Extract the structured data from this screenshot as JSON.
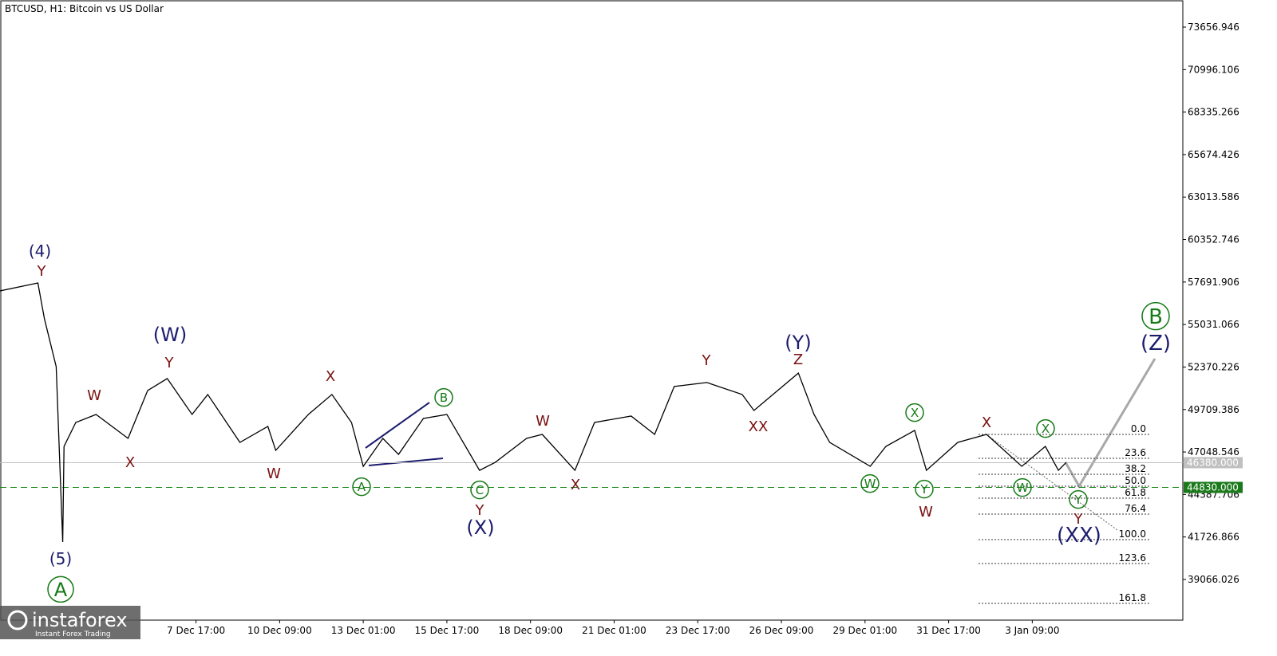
{
  "chart_data": {
    "type": "line",
    "title": "BTCUSD, H1:  Bitcoin vs US Dollar",
    "logo": "instaforex",
    "logo_tagline": "Instant Forex Trading",
    "x": [
      -150,
      -121,
      -116,
      -107,
      -102,
      -101,
      -92,
      -76.5,
      -52,
      -37,
      -22,
      -3,
      9,
      33.6,
      55,
      61,
      86,
      104,
      119,
      128,
      143,
      155,
      174,
      192,
      217,
      229,
      253,
      265,
      290,
      305,
      333,
      351,
      366,
      391,
      418,
      427,
      461,
      473,
      485,
      516,
      528,
      550,
      559,
      583,
      605,
      632,
      650,
      660,
      666
    ],
    "series": [
      {
        "color": "#000000",
        "values": [
          57137,
          57636,
          55390,
          52395,
          41412,
          47400,
          48900,
          49400,
          47900,
          50900,
          51650,
          49400,
          50650,
          47650,
          48650,
          47150,
          49400,
          50650,
          48900,
          46150,
          47900,
          46900,
          49150,
          49400,
          45900,
          46400,
          47900,
          48150,
          45900,
          48900,
          49300,
          48150,
          51150,
          51400,
          50650,
          49650,
          51990,
          49400,
          47650,
          46150,
          47400,
          48400,
          45900,
          47650,
          48150,
          46150,
          47400,
          45900,
          46400
        ]
      }
    ],
    "xlim": [
      -150,
      754
    ],
    "ylim": [
      36520,
      75354
    ],
    "xticks": [
      {
        "value": 0,
        "label": "7 Dec 17:00"
      },
      {
        "value": 64,
        "label": "10 Dec 09:00"
      },
      {
        "value": 128,
        "label": "13 Dec 01:00"
      },
      {
        "value": 192,
        "label": "15 Dec 17:00"
      },
      {
        "value": 256,
        "label": "18 Dec 09:00"
      },
      {
        "value": 320,
        "label": "21 Dec 01:00"
      },
      {
        "value": 384,
        "label": "23 Dec 17:00"
      },
      {
        "value": 448,
        "label": "26 Dec 09:00"
      },
      {
        "value": 512,
        "label": "29 Dec 01:00"
      },
      {
        "value": 576,
        "label": "31 Dec 17:00"
      },
      {
        "value": 640,
        "label": "3 Jan 09:00"
      }
    ],
    "yticks": [
      {
        "value": 73656.946,
        "label": "73656.946"
      },
      {
        "value": 70996.106,
        "label": "70996.106"
      },
      {
        "value": 68335.266,
        "label": "68335.266"
      },
      {
        "value": 65674.426,
        "label": "65674.426"
      },
      {
        "value": 63013.586,
        "label": "63013.586"
      },
      {
        "value": 60352.746,
        "label": "60352.746"
      },
      {
        "value": 57691.906,
        "label": "57691.906"
      },
      {
        "value": 55031.066,
        "label": "55031.066"
      },
      {
        "value": 52370.226,
        "label": "52370.226"
      },
      {
        "value": 49709.386,
        "label": "49709.386"
      },
      {
        "value": 47048.546,
        "label": "47048.546"
      },
      {
        "value": 44387.706,
        "label": "44387.706"
      },
      {
        "value": 41726.866,
        "label": "41726.866"
      },
      {
        "value": 39066.026,
        "label": "39066.026"
      }
    ],
    "current_price": {
      "value": 46380,
      "label": "46380.000"
    },
    "level": {
      "value": 44830,
      "label": "44830.000"
    },
    "fib_levels": [
      "0.0",
      "23.6",
      "38.2",
      "50.0",
      "61.8",
      "76.4",
      "100.0",
      "123.6",
      "161.8"
    ],
    "wave_labels": [
      "(4)",
      "Y",
      "(5)",
      "A",
      "(W)",
      "Y",
      "W",
      "X",
      "W",
      "X",
      "A",
      "B",
      "C",
      "Y",
      "(X)",
      "W",
      "X",
      "Y",
      "(Y)",
      "Z",
      "XX",
      "X",
      "W",
      "Y",
      "W",
      "X",
      "X",
      "W",
      "Y",
      "Y",
      "(XX)",
      "B",
      "(Z)"
    ]
  }
}
